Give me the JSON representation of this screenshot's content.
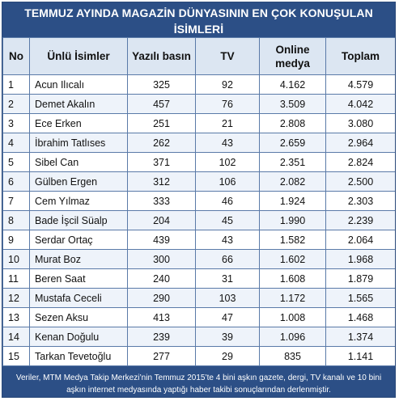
{
  "title": "TEMMUZ AYINDA MAGAZİN DÜNYASININ EN ÇOK KONUŞULAN İSİMLERİ",
  "headers": {
    "no": "No",
    "name": "Ünlü İsimler",
    "print": "Yazılı basın",
    "tv": "TV",
    "online": "Online medya",
    "total": "Toplam"
  },
  "rows": [
    {
      "no": "1",
      "name": "Acun Ilıcalı",
      "print": "325",
      "tv": "92",
      "online": "4.162",
      "total": "4.579"
    },
    {
      "no": "2",
      "name": "Demet Akalın",
      "print": "457",
      "tv": "76",
      "online": "3.509",
      "total": "4.042"
    },
    {
      "no": "3",
      "name": "Ece Erken",
      "print": "251",
      "tv": "21",
      "online": "2.808",
      "total": "3.080"
    },
    {
      "no": "4",
      "name": "İbrahim Tatlıses",
      "print": "262",
      "tv": "43",
      "online": "2.659",
      "total": "2.964"
    },
    {
      "no": "5",
      "name": "Sibel Can",
      "print": "371",
      "tv": "102",
      "online": "2.351",
      "total": "2.824"
    },
    {
      "no": "6",
      "name": "Gülben Ergen",
      "print": "312",
      "tv": "106",
      "online": "2.082",
      "total": "2.500"
    },
    {
      "no": "7",
      "name": "Cem Yılmaz",
      "print": "333",
      "tv": "46",
      "online": "1.924",
      "total": "2.303"
    },
    {
      "no": "8",
      "name": "Bade İşcil Süalp",
      "print": "204",
      "tv": "45",
      "online": "1.990",
      "total": "2.239"
    },
    {
      "no": "9",
      "name": "Serdar Ortaç",
      "print": "439",
      "tv": "43",
      "online": "1.582",
      "total": "2.064"
    },
    {
      "no": "10",
      "name": "Murat Boz",
      "print": "300",
      "tv": "66",
      "online": "1.602",
      "total": "1.968"
    },
    {
      "no": "11",
      "name": "Beren Saat",
      "print": "240",
      "tv": "31",
      "online": "1.608",
      "total": "1.879"
    },
    {
      "no": "12",
      "name": "Mustafa Ceceli",
      "print": "290",
      "tv": "103",
      "online": "1.172",
      "total": "1.565"
    },
    {
      "no": "13",
      "name": "Sezen Aksu",
      "print": "413",
      "tv": "47",
      "online": "1.008",
      "total": "1.468"
    },
    {
      "no": "14",
      "name": "Kenan Doğulu",
      "print": "239",
      "tv": "39",
      "online": "1.096",
      "total": "1.374"
    },
    {
      "no": "15",
      "name": "Tarkan Tevetoğlu",
      "print": "277",
      "tv": "29",
      "online": "835",
      "total": "1.141"
    }
  ],
  "footer": "Veriler, MTM Medya Takip Merkezi’nin Temmuz 2015’te 4 bini aşkın gazete, dergi, TV kanalı ve 10 bini aşkın internet medyasında yaptığı haber takibi sonuçlarından derlenmiştir.",
  "colors": {
    "header_bg": "#2c4f86",
    "column_header_bg": "#dce6f2",
    "alt_row_bg": "#eef3fa",
    "border": "#5a7aa8"
  }
}
